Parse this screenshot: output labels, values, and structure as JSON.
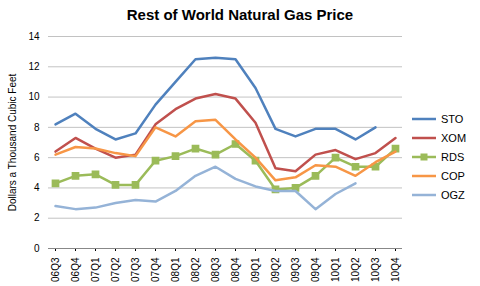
{
  "chart_data": {
    "type": "line",
    "title": "Rest of World Natural Gas Price",
    "ylabel": "Dollars a Thousand Cubic Feet",
    "categories": [
      "06Q3",
      "06Q4",
      "07Q1",
      "07Q2",
      "07Q3",
      "07Q4",
      "08Q1",
      "08Q2",
      "08Q3",
      "08Q4",
      "09Q1",
      "09Q2",
      "09Q3",
      "09Q4",
      "10Q1",
      "10Q2",
      "10Q3",
      "10Q4"
    ],
    "series": [
      {
        "name": "STO",
        "color": "#4F81BD",
        "values": [
          8.2,
          8.9,
          7.9,
          7.2,
          7.6,
          9.5,
          11.0,
          12.5,
          12.6,
          12.5,
          10.6,
          7.9,
          7.4,
          7.9,
          7.9,
          7.2,
          8.0,
          null
        ]
      },
      {
        "name": "XOM",
        "color": "#C0504D",
        "values": [
          6.4,
          7.3,
          6.6,
          6.0,
          6.2,
          8.2,
          9.2,
          9.9,
          10.2,
          9.9,
          8.3,
          5.3,
          5.1,
          6.2,
          6.5,
          5.9,
          6.3,
          7.3
        ]
      },
      {
        "name": "RDS",
        "color": "#9BBB59",
        "marker": "square",
        "values": [
          4.3,
          4.8,
          4.9,
          4.2,
          4.2,
          5.8,
          6.1,
          6.6,
          6.2,
          6.9,
          5.8,
          3.9,
          4.0,
          4.8,
          6.0,
          5.4,
          5.4,
          6.6
        ]
      },
      {
        "name": "COP",
        "color": "#F79646",
        "values": [
          6.2,
          6.7,
          6.6,
          6.3,
          6.1,
          8.0,
          7.4,
          8.4,
          8.5,
          7.2,
          6.0,
          4.5,
          4.7,
          5.5,
          5.4,
          4.8,
          5.7,
          6.4
        ]
      },
      {
        "name": "OGZ",
        "color": "#95B3D7",
        "values": [
          2.8,
          2.6,
          2.7,
          3.0,
          3.2,
          3.1,
          3.8,
          4.8,
          5.4,
          4.6,
          4.1,
          3.8,
          3.8,
          2.6,
          3.6,
          4.3,
          null,
          null
        ]
      }
    ],
    "ylim": [
      0,
      14
    ],
    "yticks": [
      0,
      2,
      4,
      6,
      8,
      10,
      12,
      14
    ],
    "grid": true,
    "legend": "right"
  }
}
